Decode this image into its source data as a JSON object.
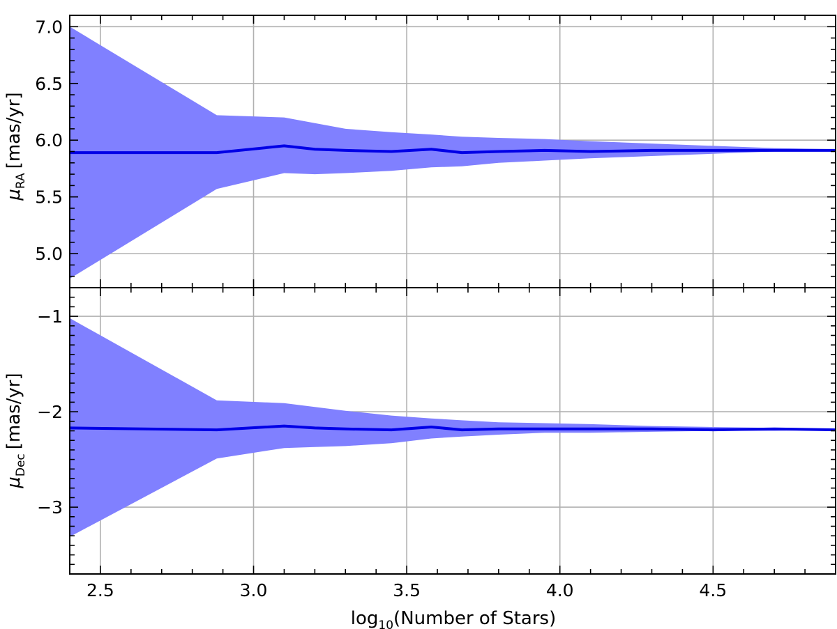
{
  "chart_data": [
    {
      "type": "area",
      "panel": "top",
      "ylabel_symbol": "μ",
      "ylabel_sub": "RA",
      "ylabel_unit": "[mas/yr]",
      "xlim": [
        2.4,
        4.9
      ],
      "ylim": [
        4.7,
        7.1
      ],
      "yticks": [
        5.0,
        5.5,
        6.0,
        6.5,
        7.0
      ],
      "ytick_labels": [
        "5.0",
        "5.5",
        "6.0",
        "6.5",
        "7.0"
      ],
      "grid": true,
      "x": [
        2.4,
        2.88,
        3.1,
        3.2,
        3.3,
        3.45,
        3.58,
        3.68,
        3.8,
        3.95,
        4.1,
        4.3,
        4.5,
        4.7,
        4.9
      ],
      "mean": [
        5.89,
        5.89,
        5.95,
        5.92,
        5.91,
        5.9,
        5.92,
        5.89,
        5.9,
        5.91,
        5.9,
        5.91,
        5.91,
        5.91,
        5.91
      ],
      "upper": [
        7.0,
        6.22,
        6.2,
        6.15,
        6.1,
        6.07,
        6.05,
        6.03,
        6.02,
        6.01,
        5.99,
        5.97,
        5.95,
        5.93,
        5.92
      ],
      "lower": [
        4.78,
        5.57,
        5.71,
        5.7,
        5.71,
        5.73,
        5.76,
        5.77,
        5.8,
        5.82,
        5.84,
        5.86,
        5.88,
        5.9,
        5.9
      ]
    },
    {
      "type": "area",
      "panel": "bottom",
      "ylabel_symbol": "μ",
      "ylabel_sub": "Dec",
      "ylabel_unit": "[mas/yr]",
      "xlim": [
        2.4,
        4.9
      ],
      "ylim": [
        -3.7,
        -0.7
      ],
      "yticks": [
        -3,
        -2,
        -1
      ],
      "ytick_labels": [
        "−3",
        "−2",
        "−1"
      ],
      "grid": true,
      "x": [
        2.4,
        2.88,
        3.1,
        3.2,
        3.3,
        3.45,
        3.58,
        3.68,
        3.8,
        3.95,
        4.1,
        4.3,
        4.5,
        4.7,
        4.9
      ],
      "mean": [
        -2.17,
        -2.19,
        -2.15,
        -2.17,
        -2.18,
        -2.19,
        -2.16,
        -2.19,
        -2.18,
        -2.18,
        -2.18,
        -2.18,
        -2.19,
        -2.18,
        -2.19
      ],
      "upper": [
        -1.02,
        -1.88,
        -1.91,
        -1.95,
        -1.99,
        -2.04,
        -2.07,
        -2.09,
        -2.11,
        -2.12,
        -2.13,
        -2.15,
        -2.16,
        -2.17,
        -2.18
      ],
      "lower": [
        -3.31,
        -2.49,
        -2.38,
        -2.37,
        -2.36,
        -2.33,
        -2.28,
        -2.26,
        -2.24,
        -2.22,
        -2.22,
        -2.21,
        -2.2,
        -2.2,
        -2.19
      ]
    }
  ],
  "xaxis": {
    "label_prefix": "log",
    "label_sub": "10",
    "label_suffix": "(Number of Stars)",
    "ticks": [
      2.5,
      3.0,
      3.5,
      4.0,
      4.5
    ],
    "tick_labels": [
      "2.5",
      "3.0",
      "3.5",
      "4.0",
      "4.5"
    ]
  }
}
